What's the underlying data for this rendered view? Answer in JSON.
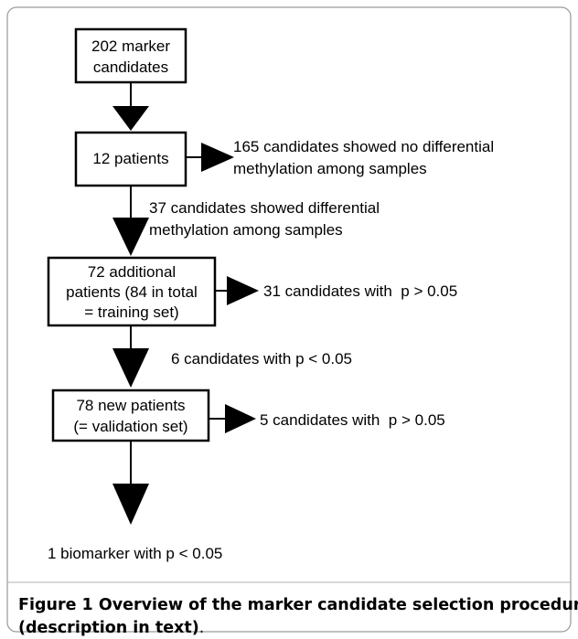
{
  "nodes": [
    {
      "lines": [
        "202 marker",
        "candidates"
      ]
    },
    {
      "lines": [
        "12 patients"
      ]
    },
    {
      "lines": [
        "72 additional",
        "patients (84 in total",
        "= training set)"
      ]
    },
    {
      "lines": [
        "78 new patients",
        "(= validation set)"
      ]
    }
  ],
  "outcomes": [
    {
      "lines": [
        "165 candidates showed no differential",
        "methylation among samples"
      ]
    },
    {
      "lines": [
        "37 candidates showed differential",
        "methylation among samples"
      ]
    },
    {
      "lines": [
        "31 candidates with  p > 0.05"
      ]
    },
    {
      "lines": [
        "6 candidates with p < 0.05"
      ]
    },
    {
      "lines": [
        "5 candidates with  p > 0.05"
      ]
    },
    {
      "lines": [
        "1 biomarker with p < 0.05"
      ]
    }
  ],
  "caption": {
    "label": "Figure 1",
    "title_lines": [
      "Overview of the marker candidate selection procedure",
      "(description in text)"
    ],
    "end": "."
  }
}
